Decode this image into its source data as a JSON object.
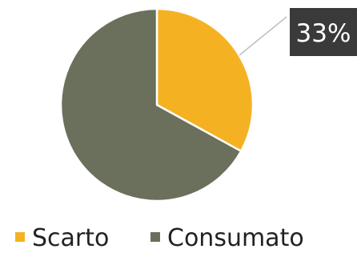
{
  "chart_data": {
    "type": "pie",
    "title": "",
    "series": [
      {
        "name": "Scarto",
        "value": 33,
        "color": "#F4B223"
      },
      {
        "name": "Consumato",
        "value": 67,
        "color": "#6B705C"
      }
    ],
    "data_labels": [
      {
        "series": "Scarto",
        "text": "33%"
      }
    ],
    "legend": {
      "position": "bottom",
      "entries": [
        "Scarto",
        "Consumato"
      ]
    },
    "colors": {
      "label_box": "#3A3A3A",
      "leader_line": "#BFBFBF"
    }
  }
}
